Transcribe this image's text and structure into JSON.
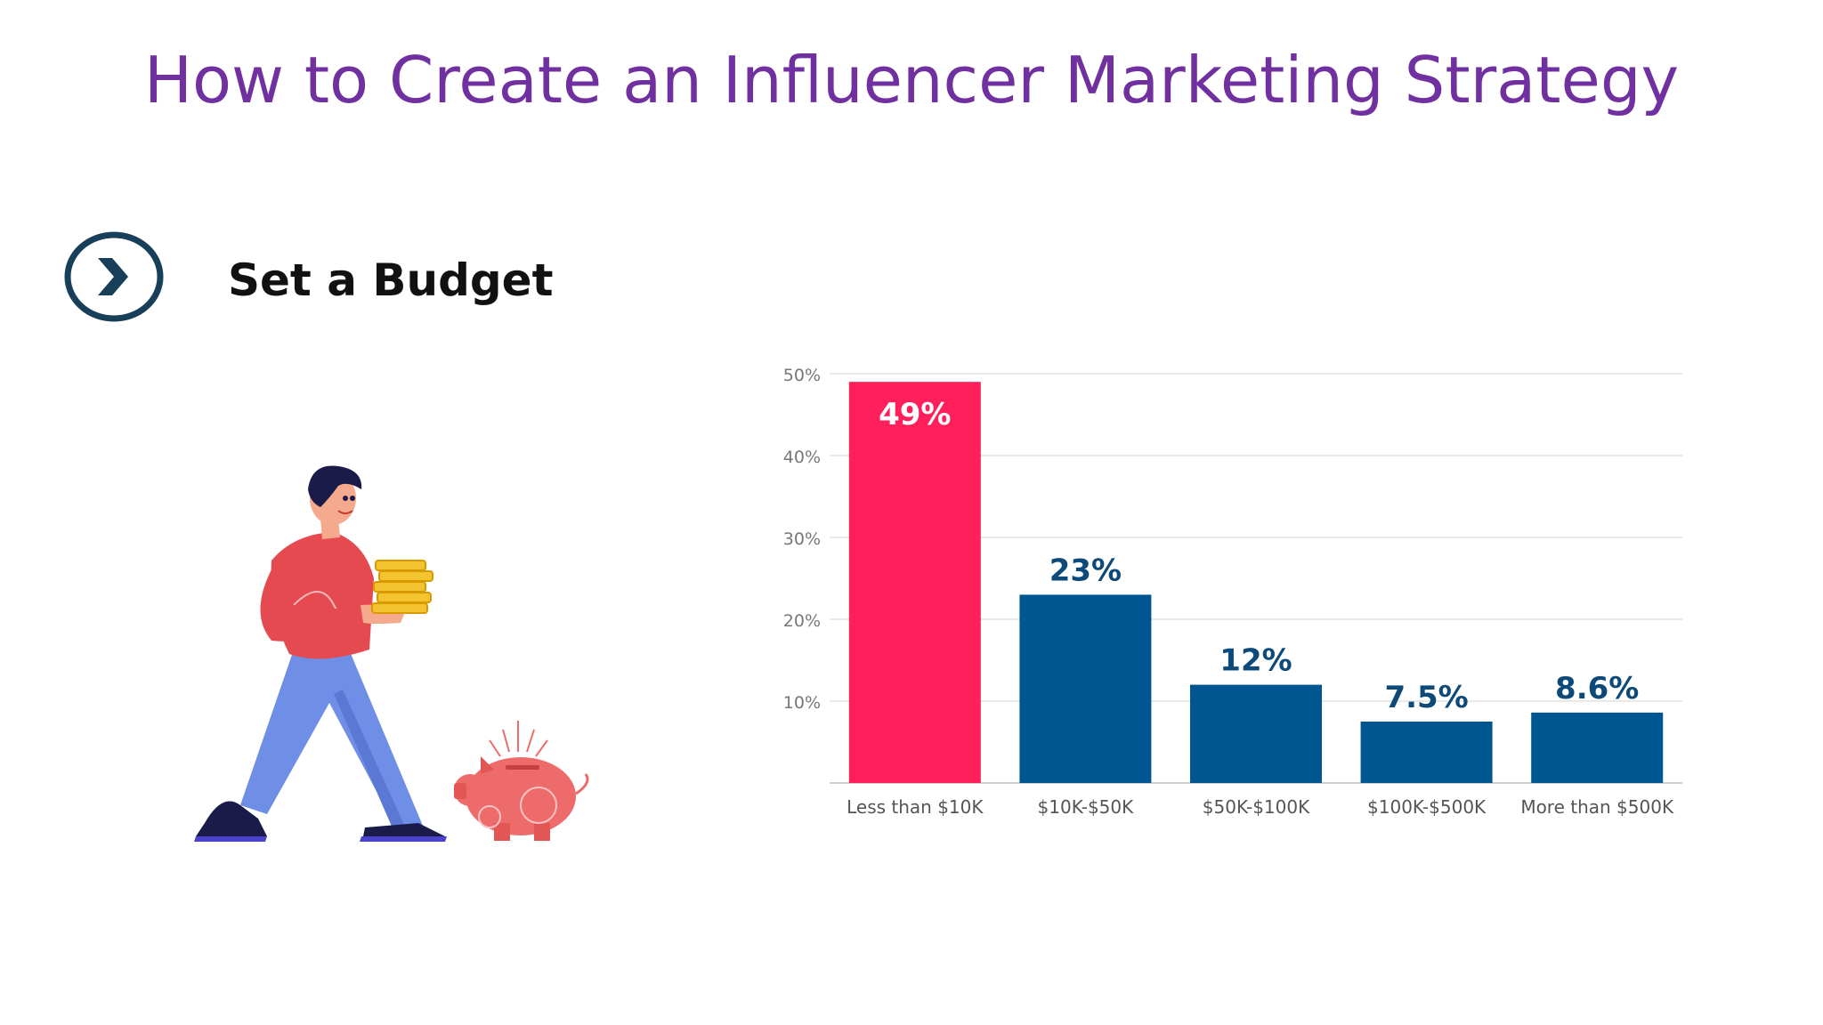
{
  "page": {
    "title": "How to Create an Influencer Marketing Strategy"
  },
  "section": {
    "heading": "Set a Budget",
    "icon": "chevron-right-circle-icon"
  },
  "illustration": {
    "subject": "man-carrying-coins-icon",
    "object": "piggy-bank-icon"
  },
  "colors": {
    "title": "#7030a0",
    "highlight_bar": "#ff1f5a",
    "bar": "#005690",
    "icon": "#173f5a",
    "label": "#0d4a7a"
  },
  "chart_data": {
    "type": "bar",
    "categories": [
      "Less than $10K",
      "$10K-$50K",
      "$50K-$100K",
      "$100K-$500K",
      "More than $500K"
    ],
    "values": [
      49,
      23,
      12,
      7.5,
      8.6
    ],
    "data_labels": [
      "49%",
      "23%",
      "12%",
      "7.5%",
      "8.6%"
    ],
    "y_ticks": [
      "10%",
      "20%",
      "30%",
      "40%",
      "50%"
    ],
    "y_tick_values": [
      10,
      20,
      30,
      40,
      50
    ],
    "ylim": [
      0,
      50
    ],
    "grid": true,
    "highlight_index": 0
  }
}
